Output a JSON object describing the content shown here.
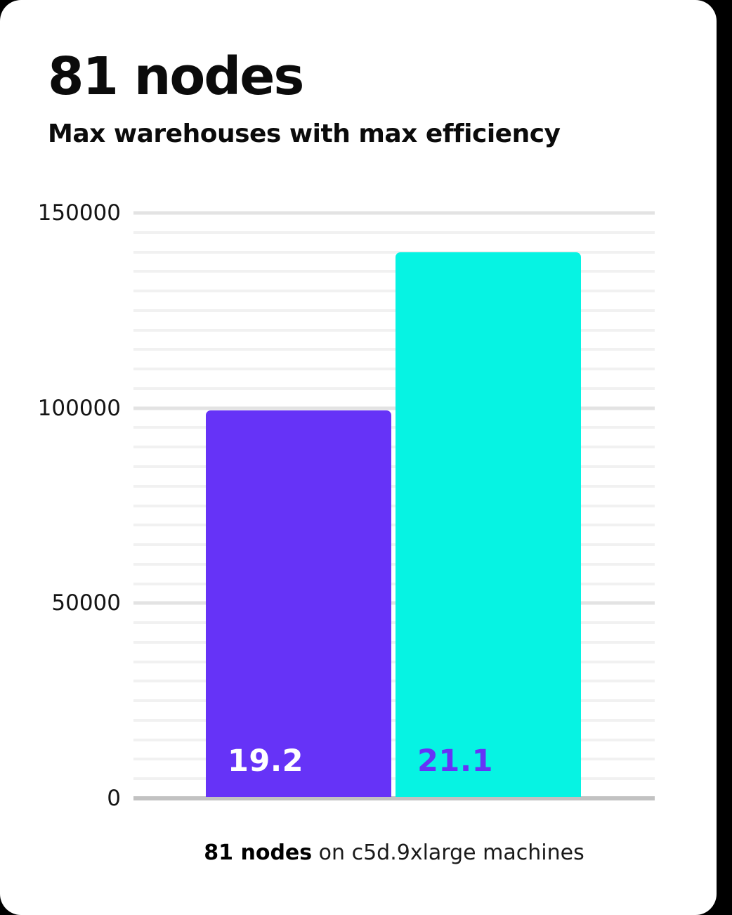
{
  "page": {
    "background_color": "#000000",
    "card_color": "#ffffff"
  },
  "header": {
    "title": "81 nodes",
    "subtitle": "Max warehouses with max efficiency"
  },
  "caption": {
    "bold": "81 nodes",
    "rest": " on c5d.9xlarge machines"
  },
  "colors": {
    "purple": "#6633f7",
    "cyan": "#06f3e3",
    "grid_minor": "#f1f1f1",
    "grid_major": "#e3e3e3",
    "axis_line": "#c2c2c2",
    "text": "#0b0b0b"
  },
  "chart_data": {
    "type": "bar",
    "title": "81 nodes",
    "subtitle": "Max warehouses with max efficiency",
    "categories": [
      "19.2",
      "21.1"
    ],
    "values": [
      99400,
      140000
    ],
    "bars": [
      {
        "label": "19.2",
        "value": 99400,
        "color": "#6633f7",
        "label_color": "#ffffff"
      },
      {
        "label": "21.1",
        "value": 140000,
        "color": "#06f3e3",
        "label_color": "#6633f7"
      }
    ],
    "xlabel": "",
    "ylabel": "",
    "ylim": [
      0,
      150000
    ],
    "yticks": [
      {
        "label": "150000",
        "value": 150000
      },
      {
        "label": "100000",
        "value": 100000
      },
      {
        "label": "50000",
        "value": 50000
      },
      {
        "label": "0",
        "value": 0
      }
    ],
    "minor_step": 5000,
    "major_step": 50000,
    "grid": true,
    "legend": false,
    "annotation": "81 nodes on c5d.9xlarge machines"
  }
}
